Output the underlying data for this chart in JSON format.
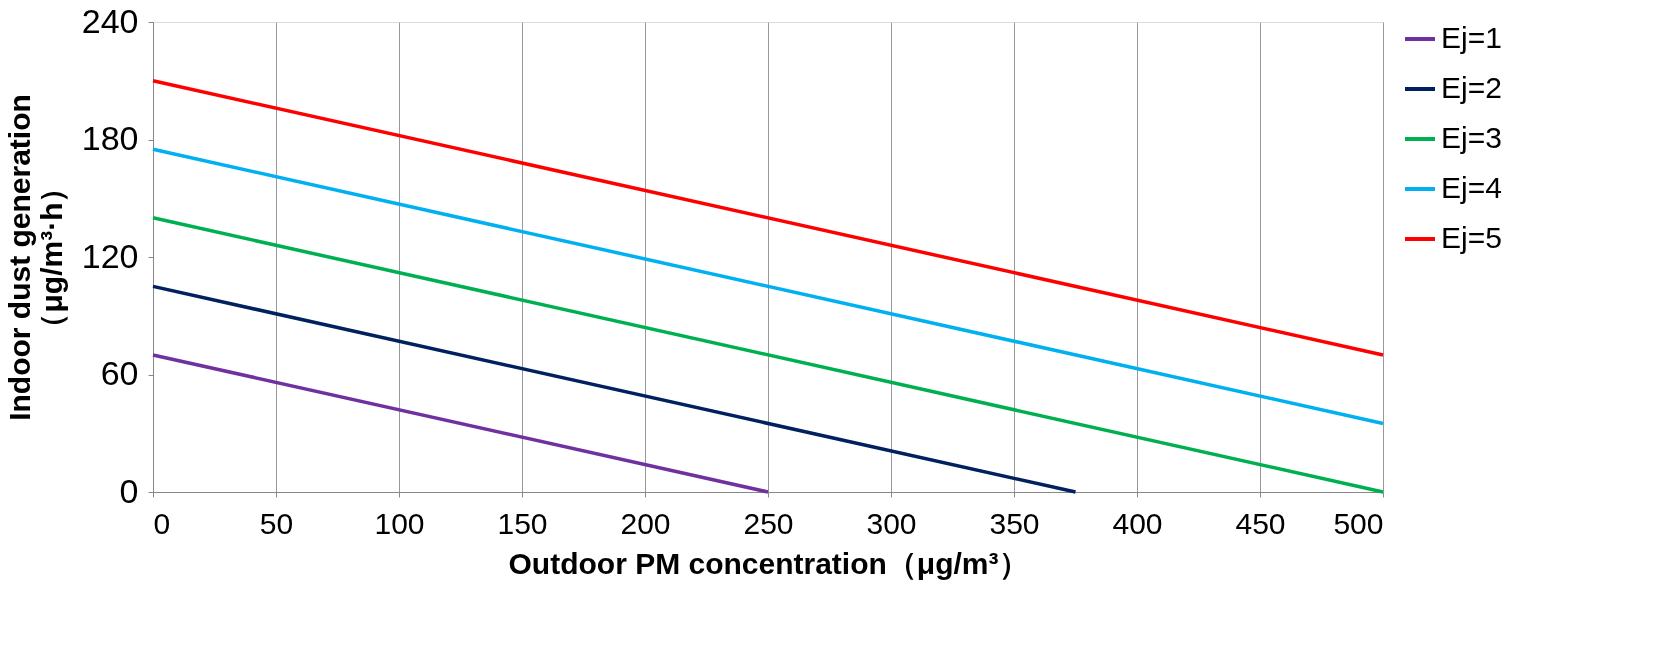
{
  "chart_data": {
    "type": "line",
    "xlabel": "Outdoor PM concentration（μg/m³）",
    "ylabel": "Indoor dust generation\n（μg/m³·h）",
    "series": [
      {
        "name": "Ej=1",
        "color": "#7030a0",
        "x": [
          0,
          250
        ],
        "values": [
          70,
          0
        ]
      },
      {
        "name": "Ej=2",
        "color": "#002060",
        "x": [
          0,
          375
        ],
        "values": [
          105,
          0
        ]
      },
      {
        "name": "Ej=3",
        "color": "#00b050",
        "x": [
          0,
          500
        ],
        "values": [
          140,
          0
        ]
      },
      {
        "name": "Ej=4",
        "color": "#00b0f0",
        "x": [
          0,
          500
        ],
        "values": [
          175,
          35
        ]
      },
      {
        "name": "Ej=5",
        "color": "#ff0000",
        "x": [
          0,
          500
        ],
        "values": [
          210,
          70
        ]
      }
    ],
    "xlim": [
      0,
      500
    ],
    "xticks": [
      0,
      50,
      100,
      150,
      200,
      250,
      300,
      350,
      400,
      450,
      500
    ],
    "ylim": [
      0,
      240
    ],
    "yticks": [
      0,
      60,
      120,
      180,
      240
    ],
    "grid": "x",
    "legend": "right",
    "marker": "none",
    "line_style": "solid"
  }
}
